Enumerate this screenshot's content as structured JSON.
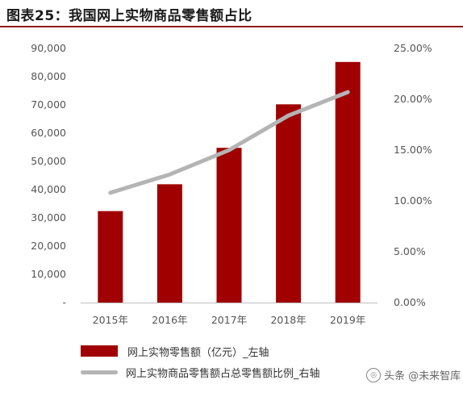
{
  "title": "图表25：我国网上实物商品零售额占比",
  "chart_data": {
    "type": "bar+line",
    "categories": [
      "2015年",
      "2016年",
      "2017年",
      "2018年",
      "2019年"
    ],
    "series": [
      {
        "name": "网上实物零售额（亿元）_左轴",
        "type": "bar",
        "axis": "left",
        "color": "#a00000",
        "values": [
          32400,
          41900,
          54800,
          70200,
          85200
        ]
      },
      {
        "name": "网上实物商品零售额占总零售额比例_右轴",
        "type": "line",
        "axis": "right",
        "color": "#b4b4b4",
        "values": [
          0.108,
          0.126,
          0.15,
          0.184,
          0.207
        ]
      }
    ],
    "left_axis": {
      "ylim": [
        0,
        90000
      ],
      "ticks": [
        "-",
        "10,000",
        "20,000",
        "30,000",
        "40,000",
        "50,000",
        "60,000",
        "70,000",
        "80,000",
        "90,000"
      ]
    },
    "right_axis": {
      "ylim": [
        0,
        0.25
      ],
      "ticks": [
        "0.00%",
        "5.00%",
        "10.00%",
        "15.00%",
        "20.00%",
        "25.00%"
      ]
    },
    "grid": false,
    "legend_position": "bottom"
  },
  "watermark": {
    "text": "头条 @未来智库",
    "icon": "watermark-logo-icon"
  }
}
